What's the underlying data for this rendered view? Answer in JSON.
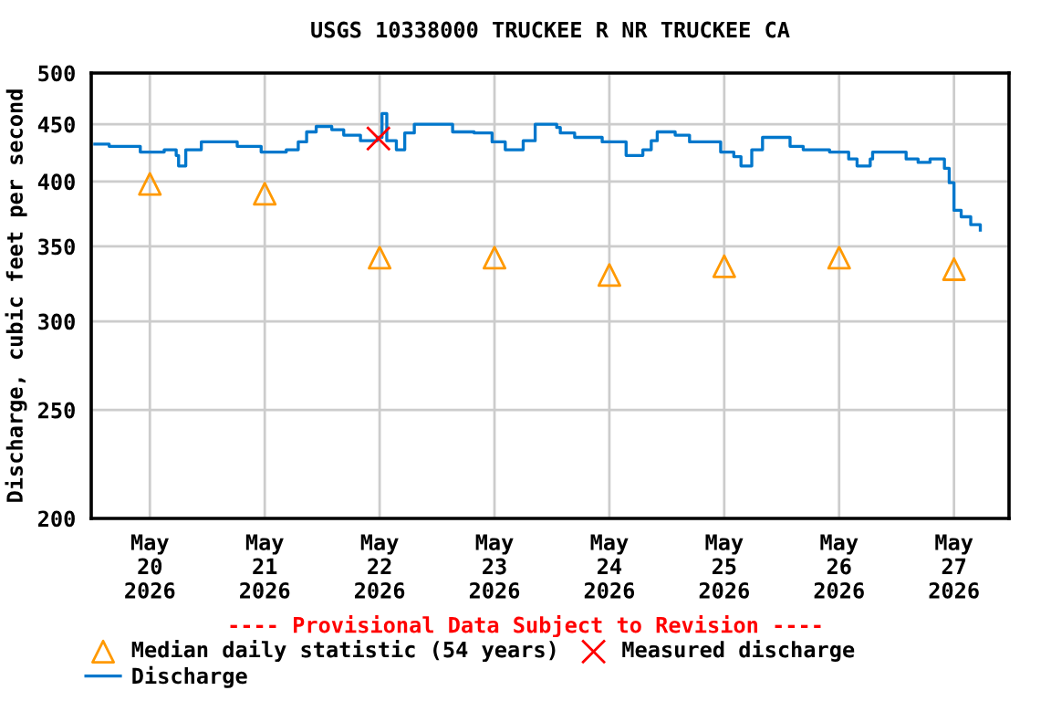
{
  "chart_data": {
    "type": "step",
    "title": "USGS 10338000 TRUCKEE R NR TRUCKEE CA",
    "ylabel": "Discharge, cubic feet per second",
    "annotations": [
      "---- Provisional Data Subject to Revision ----"
    ],
    "log": "y",
    "ylim": [
      200,
      500
    ],
    "yticks": [
      200,
      250,
      300,
      350,
      400,
      450,
      500
    ],
    "xlim": [
      "2026-05-19T11:45",
      "2026-05-27T11:30"
    ],
    "xticks": [
      {
        "value": "2026-05-20",
        "label": "May\n20\n2026"
      },
      {
        "value": "2026-05-21",
        "label": "May\n21\n2026"
      },
      {
        "value": "2026-05-22",
        "label": "May\n22\n2026"
      },
      {
        "value": "2026-05-23",
        "label": "May\n23\n2026"
      },
      {
        "value": "2026-05-24",
        "label": "May\n24\n2026"
      },
      {
        "value": "2026-05-25",
        "label": "May\n25\n2026"
      },
      {
        "value": "2026-05-26",
        "label": "May\n26\n2026"
      },
      {
        "value": "2026-05-27",
        "label": "May\n27\n2026"
      }
    ],
    "grid": true,
    "legend": "bottom",
    "series": [
      {
        "name": "Median daily statistic (54 years)",
        "type": "scatter",
        "marker": "triangle",
        "color": "#ff9900",
        "x": [
          "2026-05-20",
          "2026-05-21",
          "2026-05-22",
          "2026-05-23",
          "2026-05-24",
          "2026-05-25",
          "2026-05-26",
          "2026-05-27"
        ],
        "values": [
          398,
          390,
          342,
          342,
          330,
          336,
          342,
          334
        ]
      },
      {
        "name": "Discharge",
        "color": "#0077cc",
        "x": [
          "2026-05-19T12:30",
          "2026-05-19T15:30",
          "2026-05-19T20:30",
          "2026-05-19T22:00",
          "2026-05-20T03:00",
          "2026-05-20T05:30",
          "2026-05-20T06:00",
          "2026-05-20T07:30",
          "2026-05-20T10:45",
          "2026-05-20T15:30",
          "2026-05-20T18:15",
          "2026-05-20T23:15",
          "2026-05-21T04:30",
          "2026-05-21T07:00",
          "2026-05-21T08:45",
          "2026-05-21T10:45",
          "2026-05-21T14:00",
          "2026-05-21T16:30",
          "2026-05-21T20:00",
          "2026-05-21T23:30",
          "2026-05-22T00:30",
          "2026-05-22T01:30",
          "2026-05-22T03:30",
          "2026-05-22T05:15",
          "2026-05-22T07:15",
          "2026-05-22T11:30",
          "2026-05-22T15:15",
          "2026-05-22T19:45",
          "2026-05-22T23:30",
          "2026-05-23T02:15",
          "2026-05-23T06:00",
          "2026-05-23T08:30",
          "2026-05-23T11:00",
          "2026-05-23T13:00",
          "2026-05-23T13:45",
          "2026-05-23T16:45",
          "2026-05-23T22:30",
          "2026-05-24T03:30",
          "2026-05-24T07:00",
          "2026-05-24T08:45",
          "2026-05-24T10:00",
          "2026-05-24T13:45",
          "2026-05-24T16:45",
          "2026-05-24T23:15",
          "2026-05-25T02:00",
          "2026-05-25T03:30",
          "2026-05-25T05:45",
          "2026-05-25T08:00",
          "2026-05-25T11:45",
          "2026-05-25T13:45",
          "2026-05-25T16:30",
          "2026-05-25T22:00",
          "2026-05-26T02:00",
          "2026-05-26T03:45",
          "2026-05-26T06:30",
          "2026-05-26T07:00",
          "2026-05-26T12:15",
          "2026-05-26T14:00",
          "2026-05-26T16:30",
          "2026-05-26T19:00",
          "2026-05-26T22:00",
          "2026-05-26T23:00",
          "2026-05-27T00:00",
          "2026-05-27T01:30",
          "2026-05-27T03:30",
          "2026-05-27T05:30"
        ],
        "values": [
          432,
          430,
          430,
          425,
          427,
          422,
          413,
          427,
          434,
          434,
          430,
          425,
          427,
          434,
          443,
          448,
          445,
          440,
          435,
          438,
          460,
          435,
          427,
          442,
          450,
          450,
          443,
          442,
          434,
          427,
          435,
          450,
          450,
          447,
          442,
          438,
          434,
          422,
          427,
          435,
          443,
          440,
          434,
          425,
          421,
          413,
          427,
          438,
          438,
          430,
          427,
          425,
          419,
          413,
          419,
          425,
          425,
          419,
          416,
          419,
          411,
          399,
          377,
          372,
          366,
          362
        ]
      },
      {
        "name": "Measured discharge",
        "type": "scatter",
        "marker": "cross",
        "color": "#ff0000",
        "x": [
          "2026-05-21T23:45"
        ],
        "values": [
          437
        ]
      }
    ]
  }
}
